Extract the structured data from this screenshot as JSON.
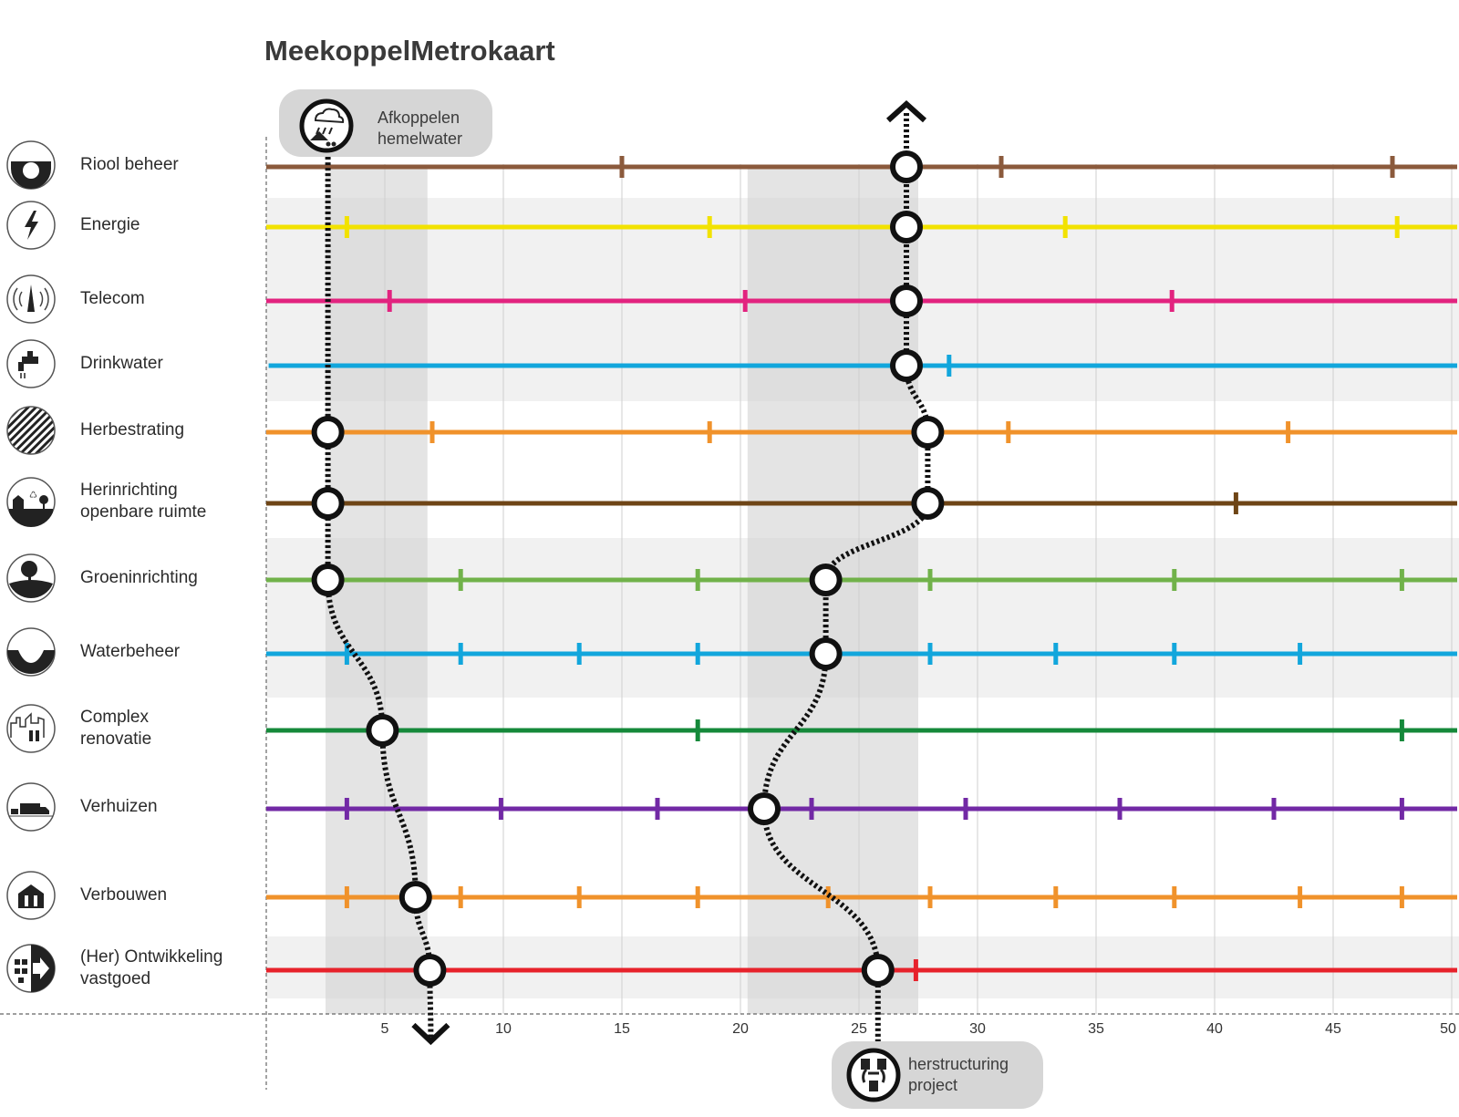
{
  "title": "MeekoppelMetrokaart",
  "x_axis": {
    "min": 0,
    "max": 50,
    "ticks": [
      5,
      10,
      15,
      20,
      25,
      30,
      35,
      40,
      45,
      50
    ]
  },
  "shaded_bands": [
    [
      2.5,
      6.8
    ],
    [
      20.3,
      27.5
    ]
  ],
  "rows": [
    {
      "label": "Riool beheer",
      "icon": "sewer-pipe-icon",
      "color": "#8b5a3c",
      "ticks": [
        15,
        31,
        47.5
      ],
      "line_start": 0,
      "row_bg": false
    },
    {
      "label": "Energie",
      "icon": "lightning-icon",
      "color": "#f2e200",
      "ticks": [
        3.4,
        18.7,
        33.7,
        47.7
      ],
      "line_start": 0,
      "row_bg": true
    },
    {
      "label": "Telecom",
      "icon": "antenna-icon",
      "color": "#e2237f",
      "ticks": [
        5.2,
        20.2,
        38.2
      ],
      "line_start": 0,
      "row_bg": true
    },
    {
      "label": "Drinkwater",
      "icon": "water-tap-icon",
      "color": "#12a6dc",
      "ticks": [
        28.8
      ],
      "line_start": 0.1,
      "row_bg": true
    },
    {
      "label": "Herbestrating",
      "icon": "paving-pattern-icon",
      "color": "#f0922b",
      "ticks": [
        7,
        18.7,
        31.3,
        43.1
      ],
      "line_start": 0,
      "row_bg": false
    },
    {
      "label": "Herinrichting\nopenbare ruimte",
      "icon": "public-space-icon",
      "color": "#6e4516",
      "ticks": [
        40.9
      ],
      "line_start": 0,
      "row_bg": false
    },
    {
      "label": "Groeninrichting",
      "icon": "tree-icon",
      "color": "#71b24a",
      "ticks": [
        8.2,
        18.2,
        28,
        38.3,
        47.9
      ],
      "line_start": 0,
      "row_bg": true
    },
    {
      "label": "Waterbeheer",
      "icon": "ditch-icon",
      "color": "#12a6dc",
      "ticks": [
        3.4,
        8.2,
        13.2,
        18.2,
        28,
        33.3,
        38.3,
        43.6
      ],
      "line_start": 0,
      "row_bg": true
    },
    {
      "label": "Complex\nrenovatie",
      "icon": "building-tools-icon",
      "color": "#15893a",
      "ticks": [
        18.2,
        47.9
      ],
      "line_start": 0,
      "row_bg": false
    },
    {
      "label": "Verhuizen",
      "icon": "moving-truck-icon",
      "color": "#7229a5",
      "ticks": [
        3.4,
        9.9,
        16.5,
        23,
        29.5,
        36,
        42.5,
        47.9
      ],
      "line_start": 0,
      "row_bg": false
    },
    {
      "label": "Verbouwen",
      "icon": "house-tools-icon",
      "color": "#f0922b",
      "ticks": [
        3.4,
        8.2,
        13.2,
        18.2,
        23.7,
        28,
        33.3,
        38.3,
        43.6,
        47.9
      ],
      "line_start": 0,
      "row_bg": false
    },
    {
      "label": "(Her) Ontwikkeling\nvastgoed",
      "icon": "development-icon",
      "color": "#e7222b",
      "ticks": [
        27.4
      ],
      "line_start": 0,
      "row_bg": true
    }
  ],
  "routes": [
    {
      "name": "Afkoppelen\nhemelwater",
      "icon": "rain-roof-icon",
      "arrow": "down",
      "stations": [
        [
          4,
          2.6
        ],
        [
          5,
          2.6
        ],
        [
          6,
          2.6
        ],
        [
          8,
          4.9
        ],
        [
          10,
          6.3
        ],
        [
          11,
          6.9
        ]
      ]
    },
    {
      "name": "herstructuring\nproject",
      "icon": "recycle-buildings-icon",
      "arrow": "up",
      "stations": [
        [
          0,
          27
        ],
        [
          1,
          27
        ],
        [
          2,
          27
        ],
        [
          3,
          27
        ],
        [
          4,
          27.9
        ],
        [
          5,
          27.9
        ],
        [
          6,
          23.6
        ],
        [
          7,
          23.6
        ],
        [
          9,
          21
        ],
        [
          11,
          25.8
        ]
      ]
    }
  ]
}
